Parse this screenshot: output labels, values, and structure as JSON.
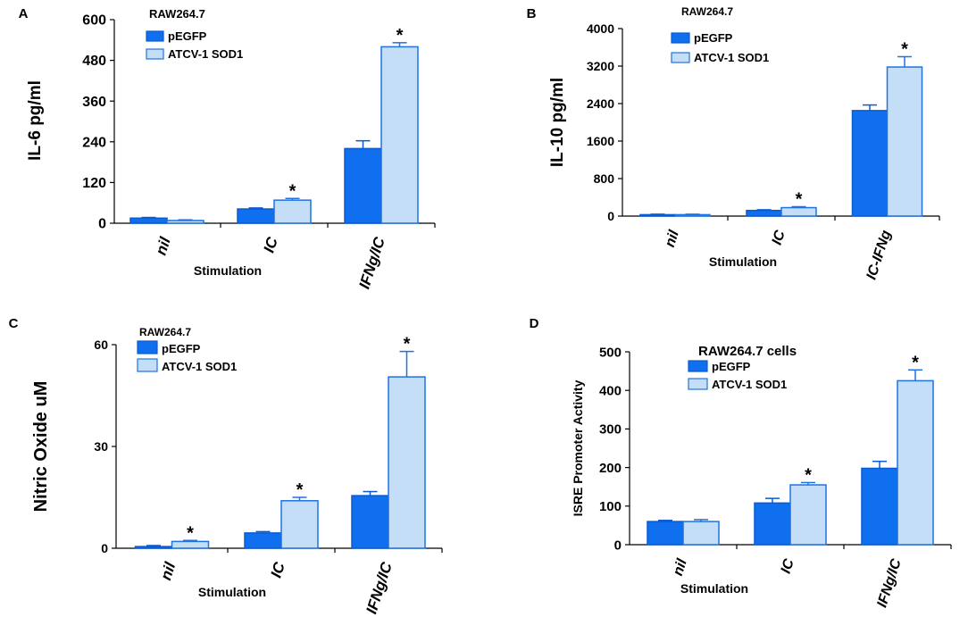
{
  "colors": {
    "series1_fill": "#0F6FEF",
    "series1_stroke": "#0A5AD0",
    "series2_fill": "#C5DEF7",
    "series2_stroke": "#1E73E0",
    "axis": "#000000"
  },
  "chart_data": [
    {
      "type": "bar",
      "panel_label": "A",
      "title": "RAW264.7",
      "xlabel": "Stimulation",
      "ylabel": "IL-6 pg/ml",
      "ylim": [
        0,
        600
      ],
      "yticks": [
        "0",
        "120",
        "240",
        "360",
        "480",
        "600"
      ],
      "categories": [
        "nil",
        "IC",
        "IFNg/IC"
      ],
      "series": [
        {
          "name": "pEGFP",
          "values": [
            15,
            42,
            220
          ],
          "errors": [
            2,
            3,
            23
          ]
        },
        {
          "name": "ATCV-1 SOD1",
          "values": [
            8,
            68,
            520
          ],
          "errors": [
            2,
            5,
            12
          ]
        }
      ],
      "significance": [
        "",
        "*",
        "*"
      ]
    },
    {
      "type": "bar",
      "panel_label": "B",
      "title": "RAW264.7",
      "xlabel": "Stimulation",
      "ylabel": "IL-10 pg/ml",
      "ylim": [
        0,
        4000
      ],
      "yticks": [
        "0",
        "800",
        "1600",
        "2400",
        "3200",
        "4000"
      ],
      "categories": [
        "nil",
        "IC",
        "IC-IFNg"
      ],
      "series": [
        {
          "name": "pEGFP",
          "values": [
            30,
            120,
            2250
          ],
          "errors": [
            10,
            15,
            120
          ]
        },
        {
          "name": "ATCV-1 SOD1",
          "values": [
            30,
            180,
            3180
          ],
          "errors": [
            10,
            20,
            220
          ]
        }
      ],
      "significance": [
        "",
        "*",
        "*"
      ]
    },
    {
      "type": "bar",
      "panel_label": "C",
      "title": "RAW264.7",
      "xlabel": "Stimulation",
      "ylabel": "Nitric Oxide uM",
      "ylim": [
        0,
        60
      ],
      "yticks": [
        "0",
        "30",
        "60"
      ],
      "categories": [
        "nil",
        "IC",
        "IFNg/IC"
      ],
      "series": [
        {
          "name": "pEGFP",
          "values": [
            0.5,
            4.5,
            15.5
          ],
          "errors": [
            0.3,
            0.4,
            1.2
          ]
        },
        {
          "name": "ATCV-1 SOD1",
          "values": [
            2,
            14,
            50.5
          ],
          "errors": [
            0.3,
            1,
            7.5
          ]
        }
      ],
      "significance": [
        "*",
        "*",
        "*"
      ]
    },
    {
      "type": "bar",
      "panel_label": "D",
      "title": "RAW264.7 cells",
      "xlabel": "Stimulation",
      "ylabel": "ISRE Promoter Activity",
      "ylim": [
        0,
        500
      ],
      "yticks": [
        "0",
        "100",
        "200",
        "300",
        "400",
        "500"
      ],
      "categories": [
        "nil",
        "IC",
        "IFNg/IC"
      ],
      "series": [
        {
          "name": "pEGFP",
          "values": [
            60,
            108,
            198
          ],
          "errors": [
            3,
            12,
            18
          ]
        },
        {
          "name": "ATCV-1 SOD1",
          "values": [
            60,
            155,
            425
          ],
          "errors": [
            5,
            6,
            28
          ]
        }
      ],
      "significance": [
        "",
        "*",
        "*"
      ]
    }
  ]
}
